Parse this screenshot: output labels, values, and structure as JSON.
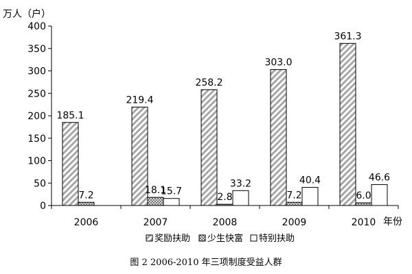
{
  "chart_data": {
    "type": "bar",
    "title": "",
    "caption": "图 2 2006-2010 年三项制度受益人群",
    "ylabel": "万人（户）",
    "xlabel": "年份",
    "ylim": [
      0,
      400
    ],
    "yticks": [
      "0",
      "50",
      "100",
      "150",
      "200",
      "250",
      "300",
      "350",
      "400"
    ],
    "categories": [
      "2006",
      "2007",
      "2008",
      "2009",
      "2010"
    ],
    "series": [
      {
        "name": "奖励扶助",
        "values": [
          185.1,
          219.4,
          258.2,
          303.0,
          361.3
        ],
        "labels": [
          "185.1",
          "219.4",
          "258.2",
          "303.0",
          "361.3"
        ],
        "pattern": "diagonal-gray"
      },
      {
        "name": "少生快富",
        "values": [
          7.2,
          18.1,
          2.8,
          7.2,
          6.0
        ],
        "labels": [
          "7.2",
          "18.1",
          "2.8",
          "7.2",
          "6.0"
        ],
        "pattern": "crosshatch"
      },
      {
        "name": "特别扶助",
        "values": [
          null,
          15.7,
          33.2,
          40.4,
          46.6
        ],
        "labels": [
          "",
          "15.7",
          "33.2",
          "40.4",
          "46.6"
        ],
        "pattern": "white"
      }
    ],
    "grid": false,
    "legend_position": "bottom"
  }
}
